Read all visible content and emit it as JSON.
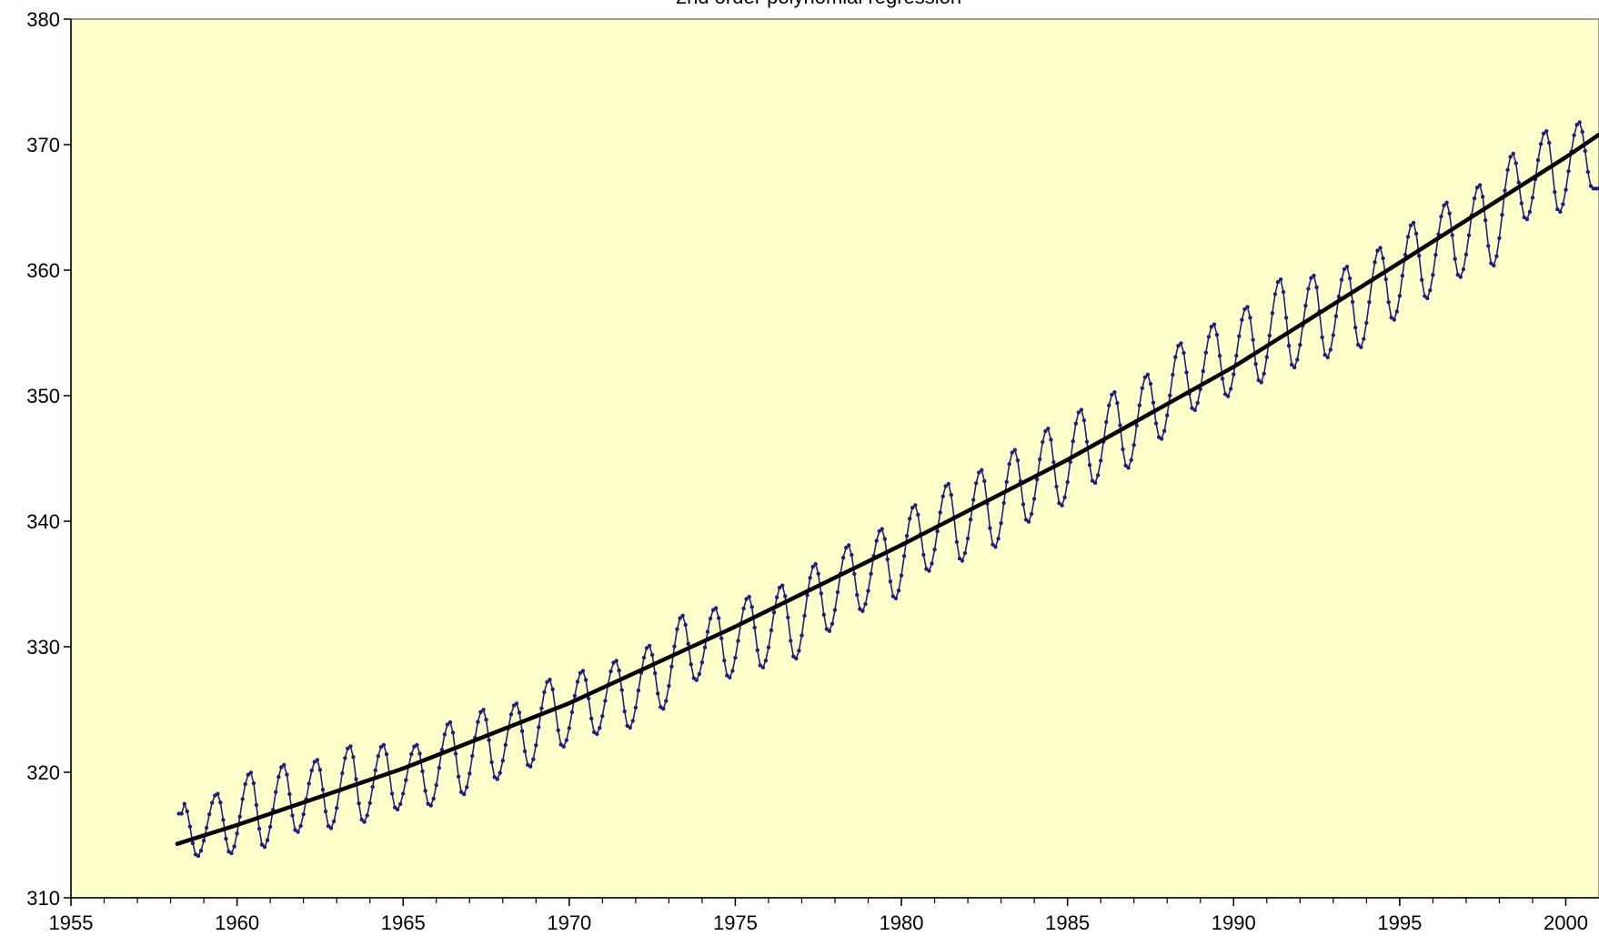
{
  "chart_data": {
    "type": "line",
    "title": "2nd order polynomial regression",
    "xlabel": "",
    "ylabel": "",
    "xlim": [
      1955,
      2001
    ],
    "ylim": [
      310,
      380
    ],
    "x_ticks": [
      1955,
      1960,
      1965,
      1970,
      1975,
      1980,
      1985,
      1990,
      1995,
      2000
    ],
    "y_ticks": [
      310,
      320,
      330,
      340,
      350,
      360,
      370,
      380
    ],
    "grid": false,
    "legend": "none",
    "plot_background": "#FFFFCC",
    "series": [
      {
        "kind": "monthly-seasonal",
        "color": "#1F1F7A",
        "marker": "dot",
        "start_year": 1958.25,
        "seasonal_peaks": [
          [
            1958.4,
            317.5
          ],
          [
            1959.4,
            318.3
          ],
          [
            1960.4,
            320.0
          ],
          [
            1961.4,
            320.6
          ],
          [
            1962.4,
            321.0
          ],
          [
            1963.4,
            322.1
          ],
          [
            1964.4,
            322.2
          ],
          [
            1965.4,
            322.2
          ],
          [
            1966.4,
            324.0
          ],
          [
            1967.4,
            325.0
          ],
          [
            1968.4,
            325.5
          ],
          [
            1969.4,
            327.4
          ],
          [
            1970.4,
            328.1
          ],
          [
            1971.4,
            328.9
          ],
          [
            1972.4,
            330.1
          ],
          [
            1973.4,
            332.5
          ],
          [
            1974.4,
            333.1
          ],
          [
            1975.4,
            334.0
          ],
          [
            1976.4,
            334.9
          ],
          [
            1977.4,
            336.6
          ],
          [
            1978.4,
            338.1
          ],
          [
            1979.4,
            339.4
          ],
          [
            1980.4,
            341.3
          ],
          [
            1981.4,
            343.0
          ],
          [
            1982.4,
            344.1
          ],
          [
            1983.4,
            345.7
          ],
          [
            1984.4,
            347.4
          ],
          [
            1985.4,
            348.9
          ],
          [
            1986.4,
            350.3
          ],
          [
            1987.4,
            351.7
          ],
          [
            1988.4,
            354.2
          ],
          [
            1989.4,
            355.7
          ],
          [
            1990.4,
            357.1
          ],
          [
            1991.4,
            359.3
          ],
          [
            1992.4,
            359.6
          ],
          [
            1993.4,
            360.3
          ],
          [
            1994.4,
            361.8
          ],
          [
            1995.4,
            363.8
          ],
          [
            1996.4,
            365.4
          ],
          [
            1997.4,
            366.8
          ],
          [
            1998.4,
            369.3
          ],
          [
            1999.4,
            371.1
          ],
          [
            2000.4,
            371.8
          ]
        ],
        "seasonal_troughs": [
          [
            1958.8,
            313.3
          ],
          [
            1959.8,
            313.5
          ],
          [
            1960.8,
            314.0
          ],
          [
            1961.8,
            315.2
          ],
          [
            1962.8,
            315.5
          ],
          [
            1963.8,
            316.0
          ],
          [
            1964.8,
            317.0
          ],
          [
            1965.8,
            317.3
          ],
          [
            1966.8,
            318.2
          ],
          [
            1967.8,
            319.4
          ],
          [
            1968.8,
            320.4
          ],
          [
            1969.8,
            322.0
          ],
          [
            1970.8,
            323.0
          ],
          [
            1971.8,
            323.5
          ],
          [
            1972.8,
            325.0
          ],
          [
            1973.8,
            327.3
          ],
          [
            1974.8,
            327.5
          ],
          [
            1975.8,
            328.3
          ],
          [
            1976.8,
            329.0
          ],
          [
            1977.8,
            331.2
          ],
          [
            1978.8,
            332.8
          ],
          [
            1979.8,
            333.8
          ],
          [
            1980.8,
            336.0
          ],
          [
            1981.8,
            336.8
          ],
          [
            1982.8,
            337.9
          ],
          [
            1983.8,
            339.9
          ],
          [
            1984.8,
            341.2
          ],
          [
            1985.8,
            343.0
          ],
          [
            1986.8,
            344.2
          ],
          [
            1987.8,
            346.5
          ],
          [
            1988.8,
            348.8
          ],
          [
            1989.8,
            349.9
          ],
          [
            1990.8,
            351.0
          ],
          [
            1991.8,
            352.2
          ],
          [
            1992.8,
            353.0
          ],
          [
            1993.8,
            353.8
          ],
          [
            1994.8,
            356.0
          ],
          [
            1995.8,
            357.7
          ],
          [
            1996.8,
            359.4
          ],
          [
            1997.8,
            360.3
          ],
          [
            1998.8,
            364.0
          ],
          [
            1999.8,
            364.6
          ],
          [
            2000.8,
            366.5
          ]
        ]
      },
      {
        "kind": "trend",
        "color": "#000000",
        "points": [
          [
            1958.2,
            314.3
          ],
          [
            1960,
            315.8
          ],
          [
            1965,
            320.3
          ],
          [
            1970,
            325.5
          ],
          [
            1975,
            331.6
          ],
          [
            1980,
            338.1
          ],
          [
            1985,
            344.9
          ],
          [
            1990,
            352.3
          ],
          [
            1995,
            360.6
          ],
          [
            2000,
            369.0
          ],
          [
            2001,
            370.8
          ]
        ]
      }
    ]
  }
}
